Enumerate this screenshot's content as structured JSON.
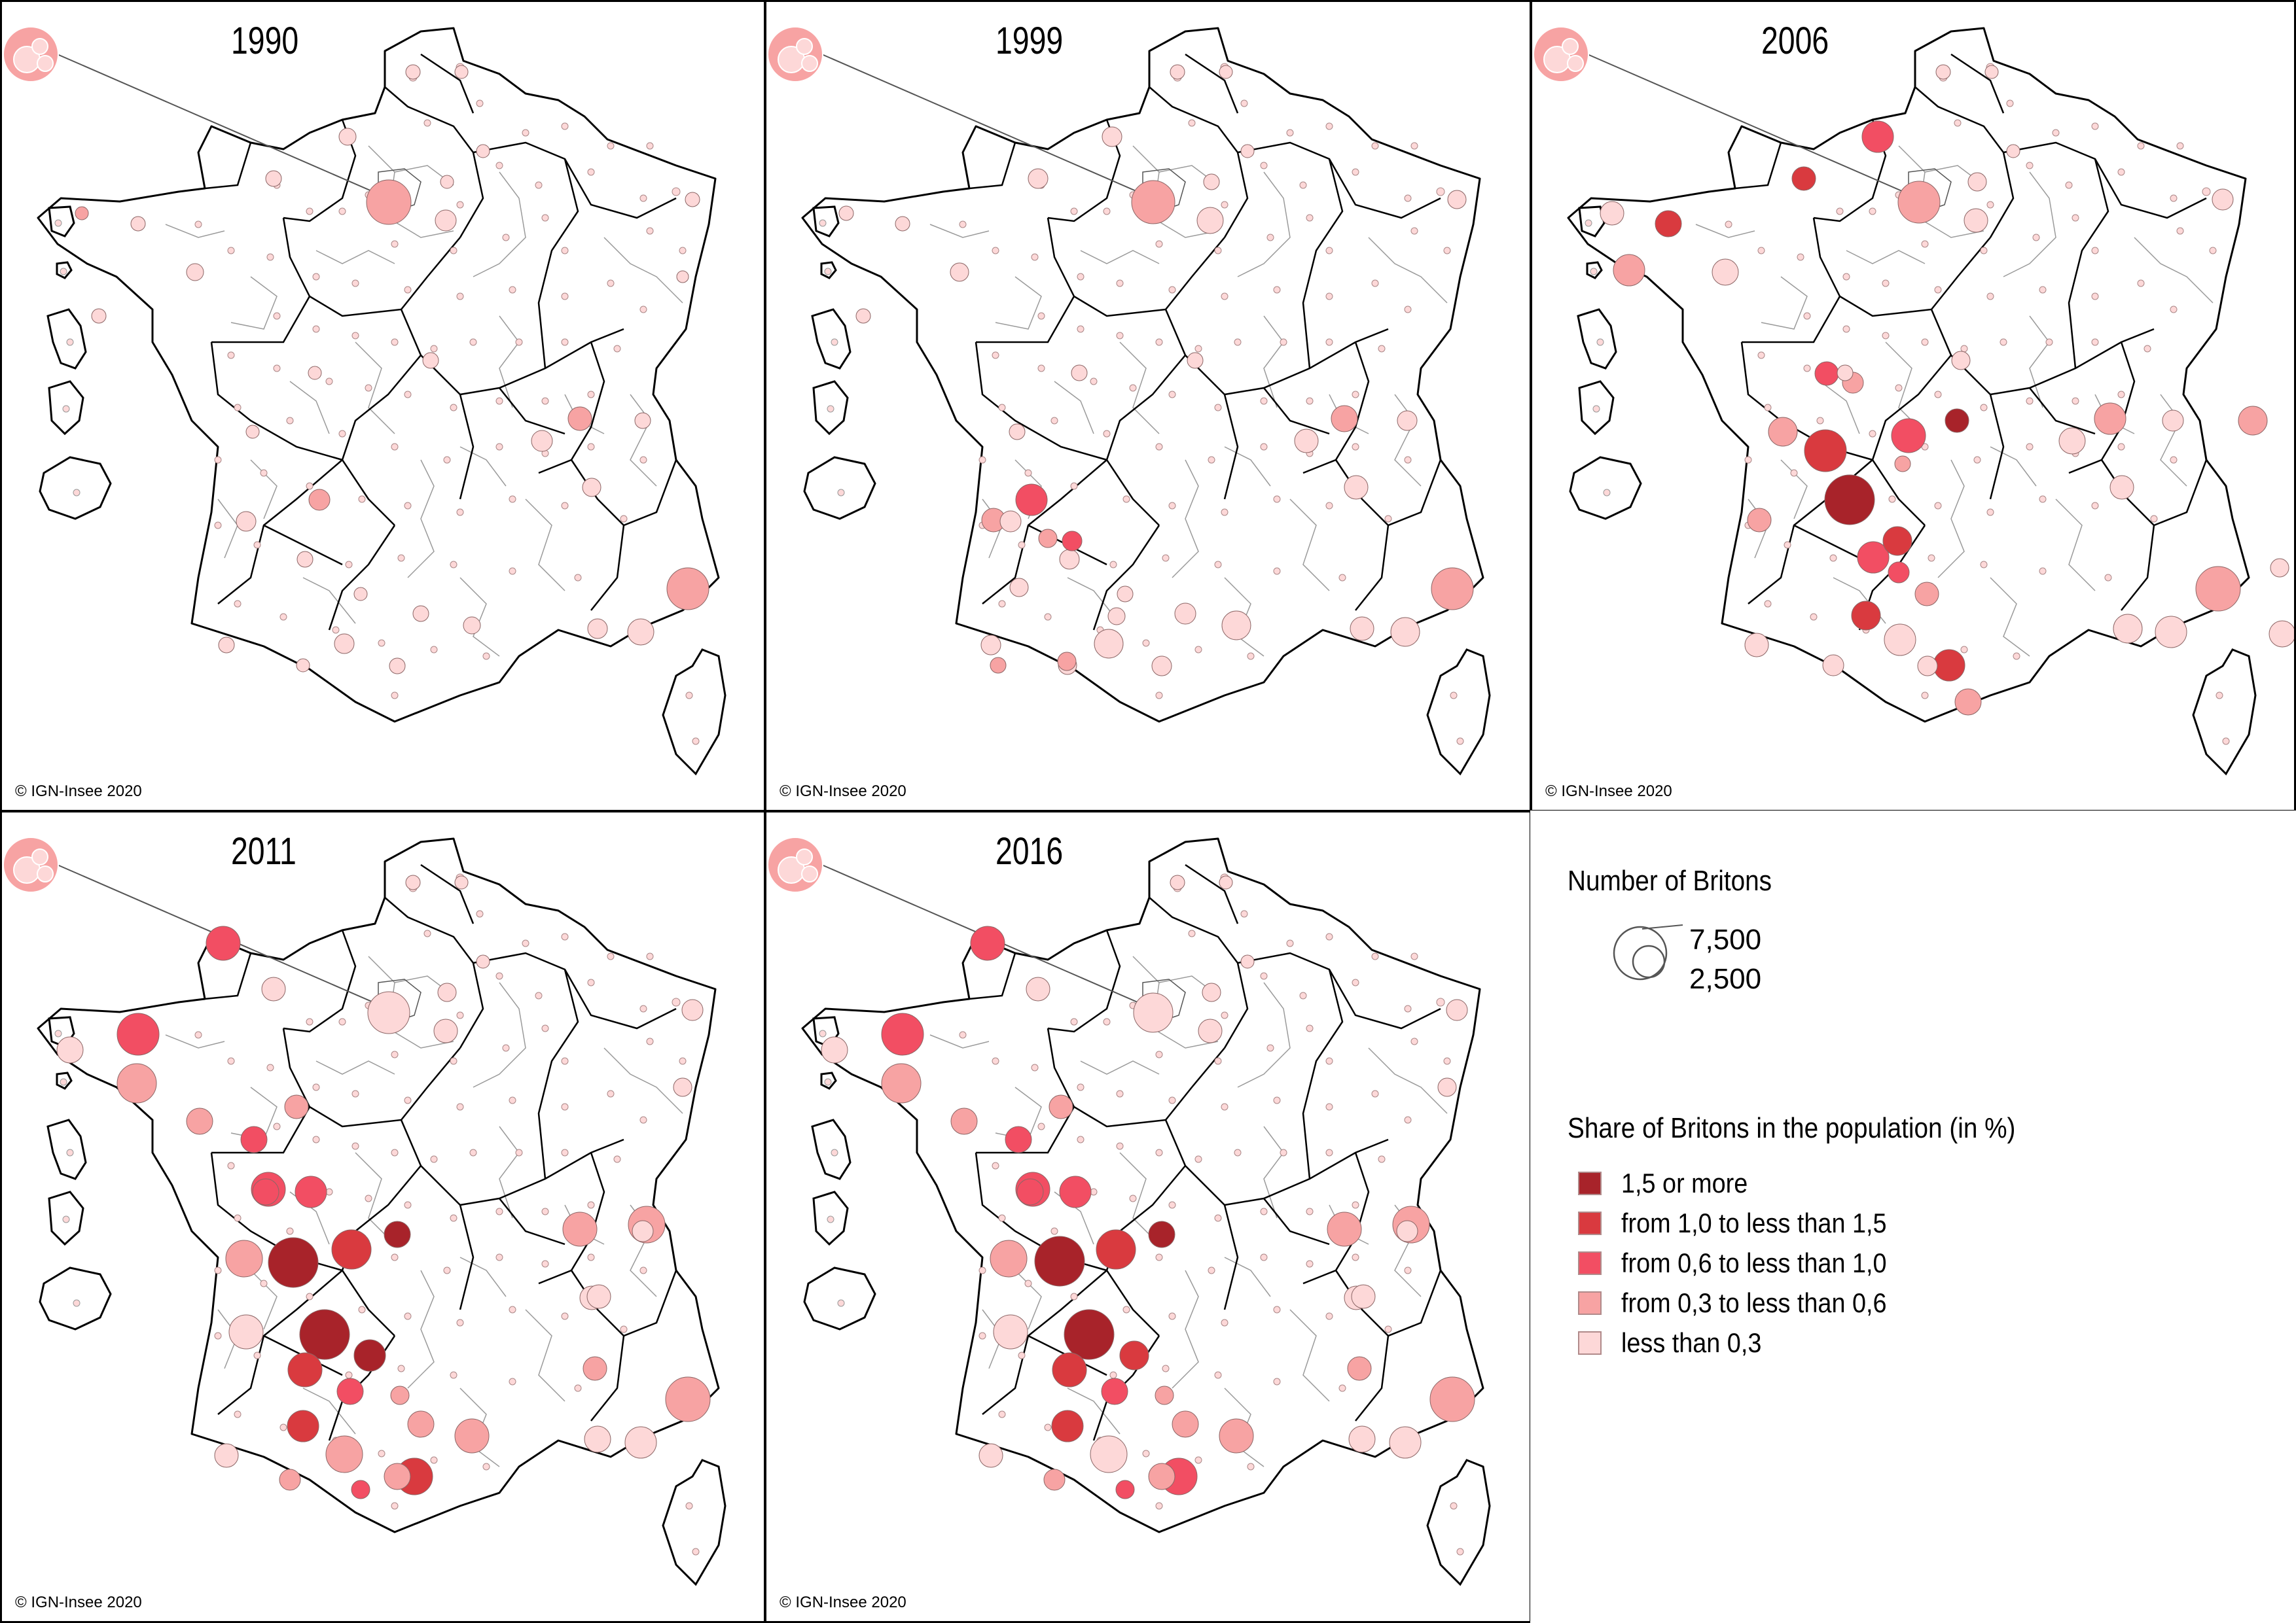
{
  "colors": {
    "c1": "#a8232a",
    "c2": "#d93a3f",
    "c3": "#f24e63",
    "c4": "#f7a3a3",
    "c5": "#fdd8d8"
  },
  "credit": "© IGN-Insee 2020",
  "panels": [
    {
      "year": "1990"
    },
    {
      "year": "1999"
    },
    {
      "year": "2006"
    },
    {
      "year": "2011"
    },
    {
      "year": "2016"
    }
  ],
  "legend": {
    "size_title": "Number of Britons",
    "size_large_label": "7,500",
    "size_small_label": "2,500",
    "color_title": "Share of Britons in the population (in %)",
    "classes": [
      {
        "label": "1,5 or more",
        "color": "#a8232a"
      },
      {
        "label": "from 1,0 to less than 1,5",
        "color": "#d93a3f"
      },
      {
        "label": "from 0,6 to less than 1,0",
        "color": "#f24e63"
      },
      {
        "label": "from 0,3 to less than 0,6",
        "color": "#f7a3a3"
      },
      {
        "label": "less than 0,3",
        "color": "#fdd8d8"
      }
    ]
  }
}
